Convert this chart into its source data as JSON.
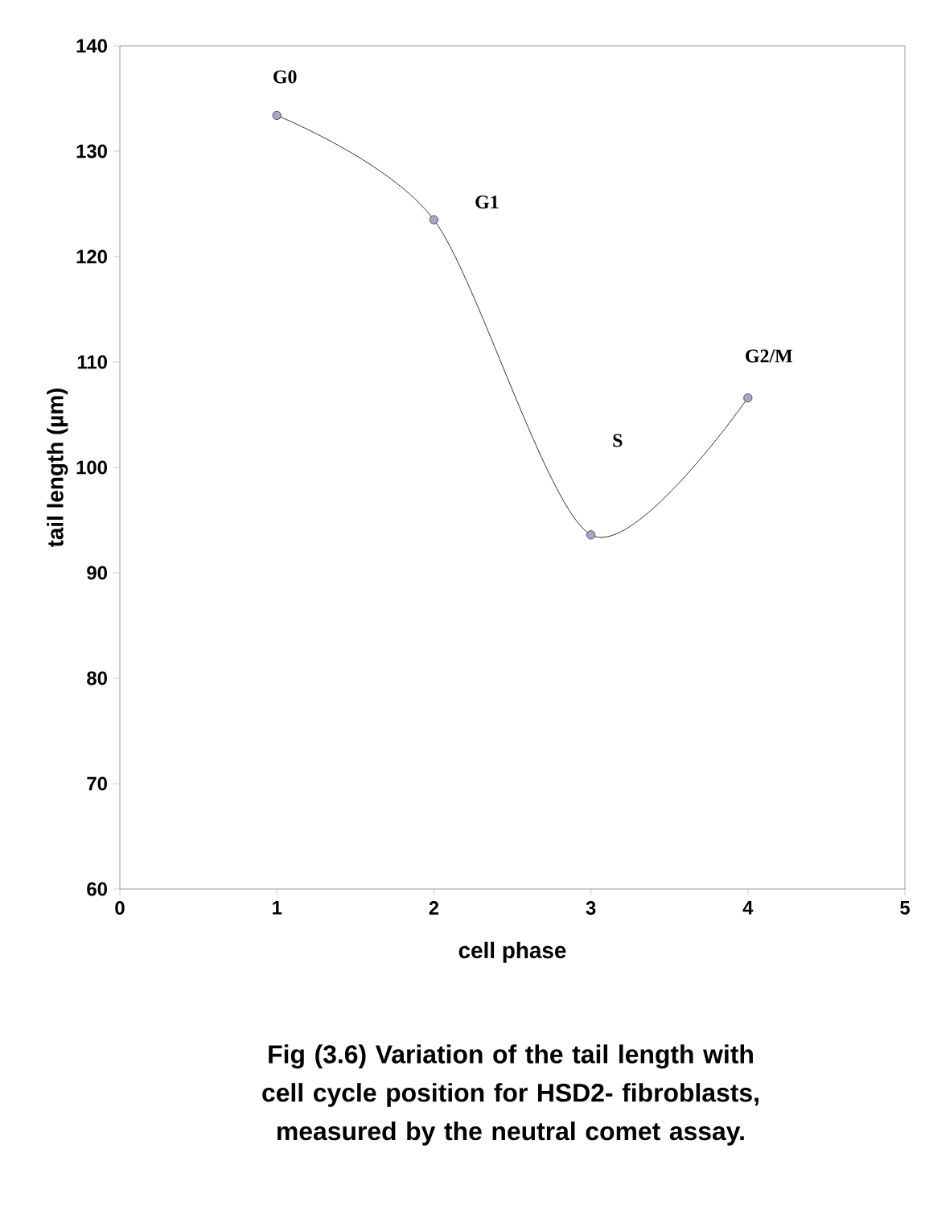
{
  "chart_data": {
    "type": "line",
    "xlabel": "cell phase",
    "ylabel": "tail length (µm)",
    "x": [
      1,
      2,
      3,
      4
    ],
    "series": [
      {
        "color": "#000000",
        "values": [
          133.4,
          123.5,
          93.6,
          106.6
        ]
      }
    ],
    "xlim": [
      0,
      5
    ],
    "xticks": [
      0,
      1,
      2,
      3,
      4,
      5
    ],
    "ylim": [
      60,
      140
    ],
    "yticks": [
      60,
      70,
      80,
      90,
      100,
      110,
      120,
      130,
      140
    ],
    "grid": false,
    "marker": "circle",
    "line_style": "solid",
    "annotations": [
      {
        "text": "G0",
        "x": 1,
        "y": 133.4
      },
      {
        "text": "G1",
        "x": 2,
        "y": 123.5
      },
      "S",
      {
        "text": "G2/M",
        "x": 4,
        "y": 106.6
      },
      "Fig (3.6) Variation of the tail length with cell cycle position  for HSD2- fibroblasts, measured by the neutral comet assay."
    ]
  }
}
